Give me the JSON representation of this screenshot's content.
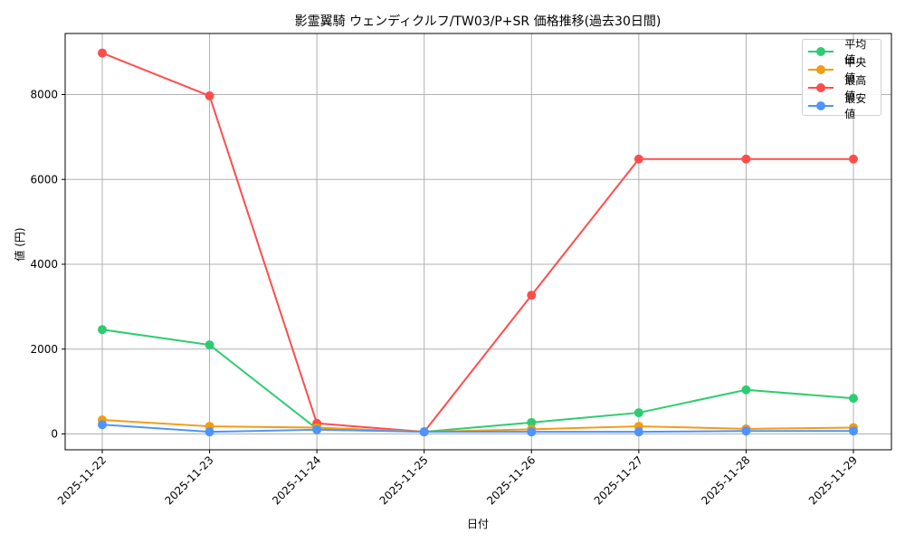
{
  "chart_data": {
    "type": "line",
    "title": "影霊翼騎 ウェンディクルフ/TW03/P+SR 価格推移(過去30日間)",
    "xlabel": "日付",
    "ylabel": "値 (円)",
    "categories": [
      "2025-11-22",
      "2025-11-23",
      "2025-11-24",
      "2025-11-25",
      "2025-11-26",
      "2025-11-27",
      "2025-11-28",
      "2025-11-29"
    ],
    "yticks": [
      0,
      2000,
      4000,
      6000,
      8000
    ],
    "ylim": [
      -400,
      9400
    ],
    "grid": true,
    "legend_position": "upper right",
    "series": [
      {
        "name": "平均値",
        "color": "#2ecc71",
        "values": [
          2460,
          2100,
          120,
          50,
          270,
          500,
          1040,
          840
        ]
      },
      {
        "name": "中央値",
        "color": "#f39c12",
        "values": [
          330,
          180,
          150,
          50,
          110,
          180,
          120,
          150
        ]
      },
      {
        "name": "最高値",
        "color": "#ff4d4d",
        "values": [
          8980,
          7970,
          250,
          50,
          3270,
          6480,
          6480,
          6480
        ]
      },
      {
        "name": "最安値",
        "color": "#4d94ff",
        "values": [
          220,
          50,
          100,
          50,
          50,
          50,
          70,
          70
        ]
      }
    ]
  }
}
